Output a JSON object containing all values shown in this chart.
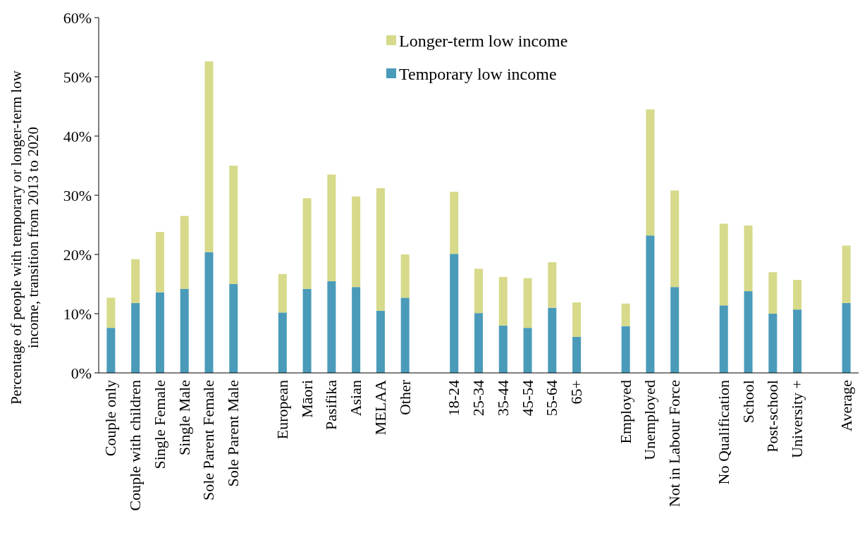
{
  "chart_data": {
    "type": "bar",
    "stacked": true,
    "ylabel": "Percentage of people with temporary or longer-term low income, transition from 2013 to 2020",
    "categories": [
      "Couple only",
      "Couple with children",
      "Single Female",
      "Single Male",
      "Sole Parent Female",
      "Sole Parent Male",
      null,
      "European",
      "Māori",
      "Pasifika",
      "Asian",
      "MELAA",
      "Other",
      null,
      "18-24",
      "25-34",
      "35-44",
      "45-54",
      "55-64",
      "65+",
      null,
      "Employed",
      "Unemployed",
      "Not in Labour Force",
      null,
      "No Qualification",
      "School",
      "Post-school",
      "University +",
      null,
      "Average"
    ],
    "series": [
      {
        "name": "Temporary low income",
        "color": "#4a9bb9",
        "values": [
          7.6,
          11.8,
          13.6,
          14.2,
          20.4,
          15.0,
          null,
          10.2,
          14.2,
          15.5,
          14.5,
          10.5,
          12.7,
          null,
          20.1,
          10.1,
          8.0,
          7.6,
          11.0,
          6.1,
          null,
          7.9,
          23.2,
          14.5,
          null,
          11.4,
          13.8,
          10.0,
          10.7,
          null,
          11.8
        ]
      },
      {
        "name": "Longer-term low income",
        "color": "#d6da8a",
        "values": [
          5.1,
          7.4,
          10.2,
          12.3,
          32.2,
          20.0,
          null,
          6.5,
          15.3,
          18.0,
          15.3,
          20.7,
          7.3,
          null,
          10.5,
          7.5,
          8.2,
          8.4,
          7.7,
          5.8,
          null,
          3.8,
          21.3,
          16.3,
          null,
          13.8,
          11.1,
          7.0,
          5.0,
          null,
          9.7
        ]
      }
    ],
    "ylim": [
      0,
      60
    ],
    "yticks": [
      {
        "value": 0,
        "label": "0%"
      },
      {
        "value": 10,
        "label": "10%"
      },
      {
        "value": 20,
        "label": "20%"
      },
      {
        "value": 30,
        "label": "30%"
      },
      {
        "value": 40,
        "label": "40%"
      },
      {
        "value": 50,
        "label": "50%"
      },
      {
        "value": 60,
        "label": "60%"
      }
    ],
    "grid": false,
    "legend": "top"
  }
}
